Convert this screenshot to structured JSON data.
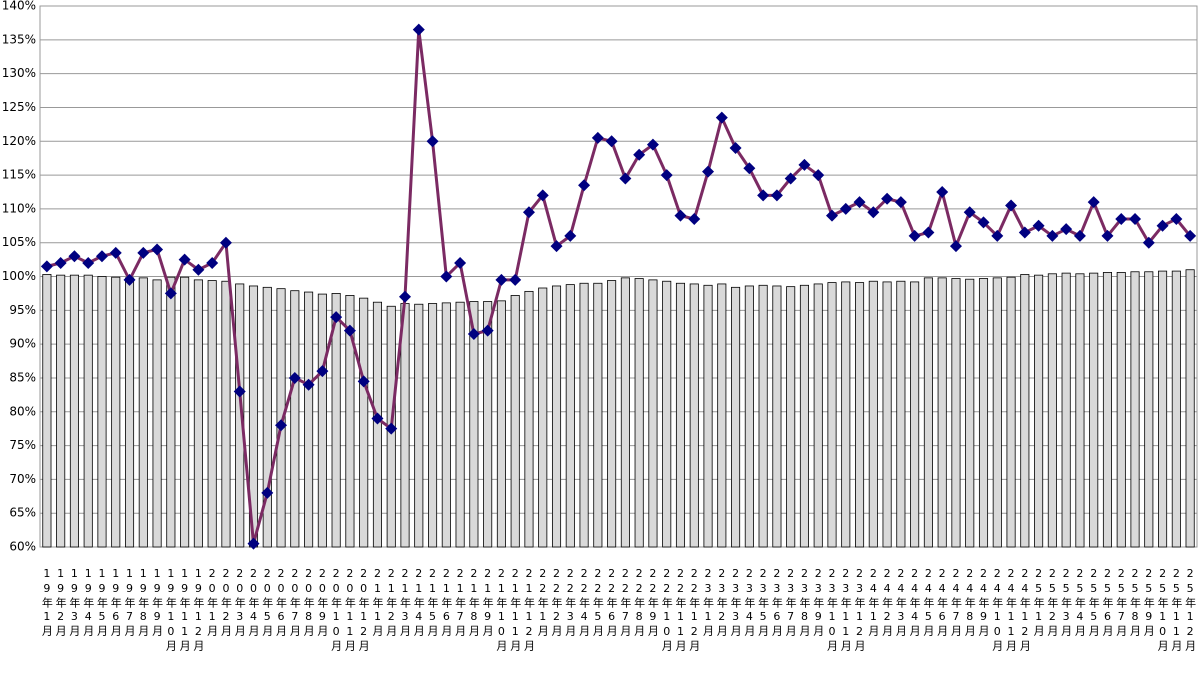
{
  "chart_data": {
    "type": "combo",
    "categories": [
      "19年1月",
      "19年2月",
      "19年3月",
      "19年4月",
      "19年5月",
      "19年6月",
      "19年7月",
      "19年8月",
      "19年9月",
      "19年10月",
      "19年11月",
      "19年12月",
      "20年1月",
      "20年2月",
      "20年3月",
      "20年4月",
      "20年5月",
      "20年6月",
      "20年7月",
      "20年8月",
      "20年9月",
      "20年10月",
      "20年11月",
      "20年12月",
      "21年1月",
      "21年2月",
      "21年3月",
      "21年4月",
      "21年5月",
      "21年6月",
      "21年7月",
      "21年8月",
      "21年9月",
      "21年10月",
      "21年11月",
      "21年12月",
      "22年1月",
      "22年2月",
      "22年3月",
      "22年4月",
      "22年5月",
      "22年6月",
      "22年7月",
      "22年8月",
      "22年9月",
      "22年10月",
      "22年11月",
      "22年12月",
      "23年1月",
      "23年2月",
      "23年3月",
      "23年4月",
      "23年5月",
      "23年6月",
      "23年7月",
      "23年8月",
      "23年9月",
      "23年10月",
      "23年11月",
      "23年12月",
      "24年1月",
      "24年2月",
      "24年3月",
      "24年4月",
      "24年5月",
      "24年6月",
      "24年7月",
      "24年8月",
      "24年9月",
      "24年10月",
      "24年11月",
      "24年12月",
      "25年1月",
      "25年2月",
      "25年3月",
      "25年4月",
      "25年5月",
      "25年6月",
      "25年7月",
      "25年8月",
      "25年9月",
      "25年10月",
      "25年11月",
      "25年12月"
    ],
    "series": [
      {
        "type": "bar",
        "color": "#d9d9d9",
        "values": [
          100.3,
          100.2,
          100.2,
          100.2,
          100,
          99.9,
          99.8,
          99.8,
          99.5,
          99.9,
          99.9,
          99.5,
          99.4,
          99.3,
          98.9,
          98.6,
          98.4,
          98.2,
          97.9,
          97.7,
          97.4,
          97.5,
          97.2,
          96.8,
          96.2,
          95.6,
          96,
          95.9,
          96,
          96.1,
          96.2,
          96.3,
          96.3,
          96.4,
          97.2,
          97.8,
          98.3,
          98.6,
          98.8,
          99,
          99,
          99.4,
          99.8,
          99.7,
          99.5,
          99.3,
          99,
          98.9,
          98.7,
          98.9,
          98.4,
          98.6,
          98.7,
          98.6,
          98.5,
          98.7,
          98.9,
          99.1,
          99.2,
          99.1,
          99.3,
          99.2,
          99.3,
          99.2,
          99.8,
          99.8,
          99.7,
          99.6,
          99.7,
          99.8,
          99.9,
          100.3,
          100.2,
          100.4,
          100.5,
          100.4,
          100.5,
          100.6,
          100.6,
          100.7,
          100.7,
          100.8,
          100.8,
          101
        ]
      },
      {
        "type": "line",
        "color": "#7b2a63",
        "marker_color": "#000080",
        "values": [
          101.5,
          102,
          103,
          102,
          103,
          103.5,
          99.5,
          103.5,
          104,
          97.5,
          102.5,
          101,
          102,
          105,
          83,
          60.5,
          68,
          78,
          85,
          84,
          86,
          94,
          92,
          84.5,
          79,
          77.5,
          97,
          136.5,
          120,
          100,
          102,
          91.5,
          92,
          99.5,
          99.5,
          109.5,
          112,
          104.5,
          106,
          113.5,
          120.5,
          120,
          114.5,
          118,
          119.5,
          115,
          109,
          108.5,
          115.5,
          123.5,
          119,
          116,
          112,
          112,
          114.5,
          116.5,
          115,
          109,
          110,
          111,
          109.5,
          111.5,
          111,
          106,
          106.5,
          112.5,
          104.5,
          109.5,
          108,
          106,
          110.5,
          106.5,
          107.5,
          106,
          107,
          106,
          111,
          106,
          108.5,
          108.5,
          105,
          107.5,
          108.5,
          106
        ]
      }
    ],
    "ylim": [
      60,
      140
    ],
    "yticks": [
      {
        "value": 60,
        "label": "60%"
      },
      {
        "value": 65,
        "label": "65%"
      },
      {
        "value": 70,
        "label": "70%"
      },
      {
        "value": 75,
        "label": "75%"
      },
      {
        "value": 80,
        "label": "80%"
      },
      {
        "value": 85,
        "label": "85%"
      },
      {
        "value": 90,
        "label": "90%"
      },
      {
        "value": 95,
        "label": "95%"
      },
      {
        "value": 100,
        "label": "100%"
      },
      {
        "value": 105,
        "label": "105%"
      },
      {
        "value": 110,
        "label": "110%"
      },
      {
        "value": 115,
        "label": "115%"
      },
      {
        "value": 120,
        "label": "120%"
      },
      {
        "value": 125,
        "label": "125%"
      },
      {
        "value": 130,
        "label": "130%"
      },
      {
        "value": 135,
        "label": "135%"
      },
      {
        "value": 140,
        "label": "140%"
      }
    ],
    "grid": true
  }
}
